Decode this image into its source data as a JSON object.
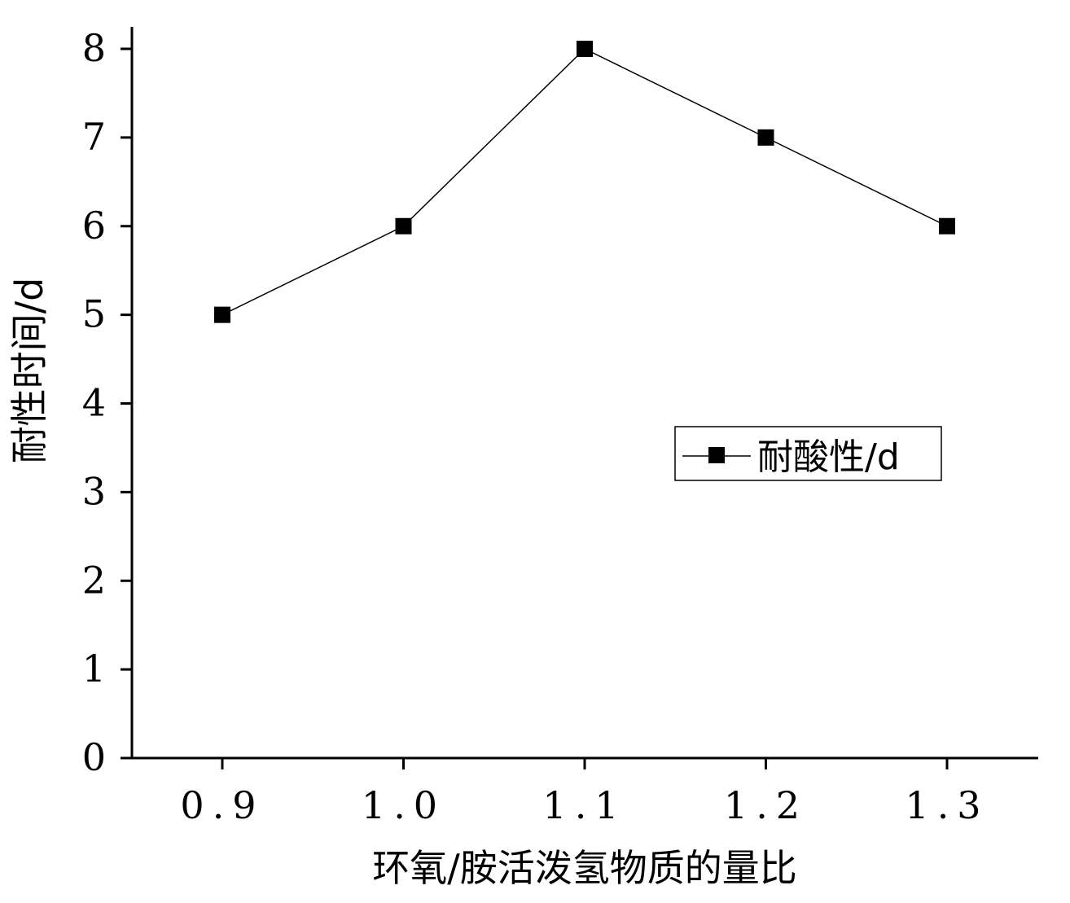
{
  "chart_data": {
    "type": "line",
    "x": [
      0.9,
      1.0,
      1.1,
      1.2,
      1.3
    ],
    "x_tick_labels": [
      "0.9",
      "1.0",
      "1.1",
      "1.2",
      "1.3"
    ],
    "y_ticks": [
      0,
      1,
      2,
      3,
      4,
      5,
      6,
      7,
      8
    ],
    "y_tick_labels": [
      "0",
      "1",
      "2",
      "3",
      "4",
      "5",
      "6",
      "7",
      "8"
    ],
    "series": [
      {
        "name": "耐酸性/d",
        "values": [
          5,
          6,
          8,
          7,
          6
        ],
        "marker": "square",
        "color": "#000000"
      }
    ],
    "title": "",
    "xlabel": "环氧/胺活泼氢物质的量比",
    "ylabel": "耐性时间/d",
    "xlim": [
      0.85,
      1.35
    ],
    "ylim": [
      0,
      8.25
    ],
    "grid": false,
    "legend_position": "center-right"
  }
}
